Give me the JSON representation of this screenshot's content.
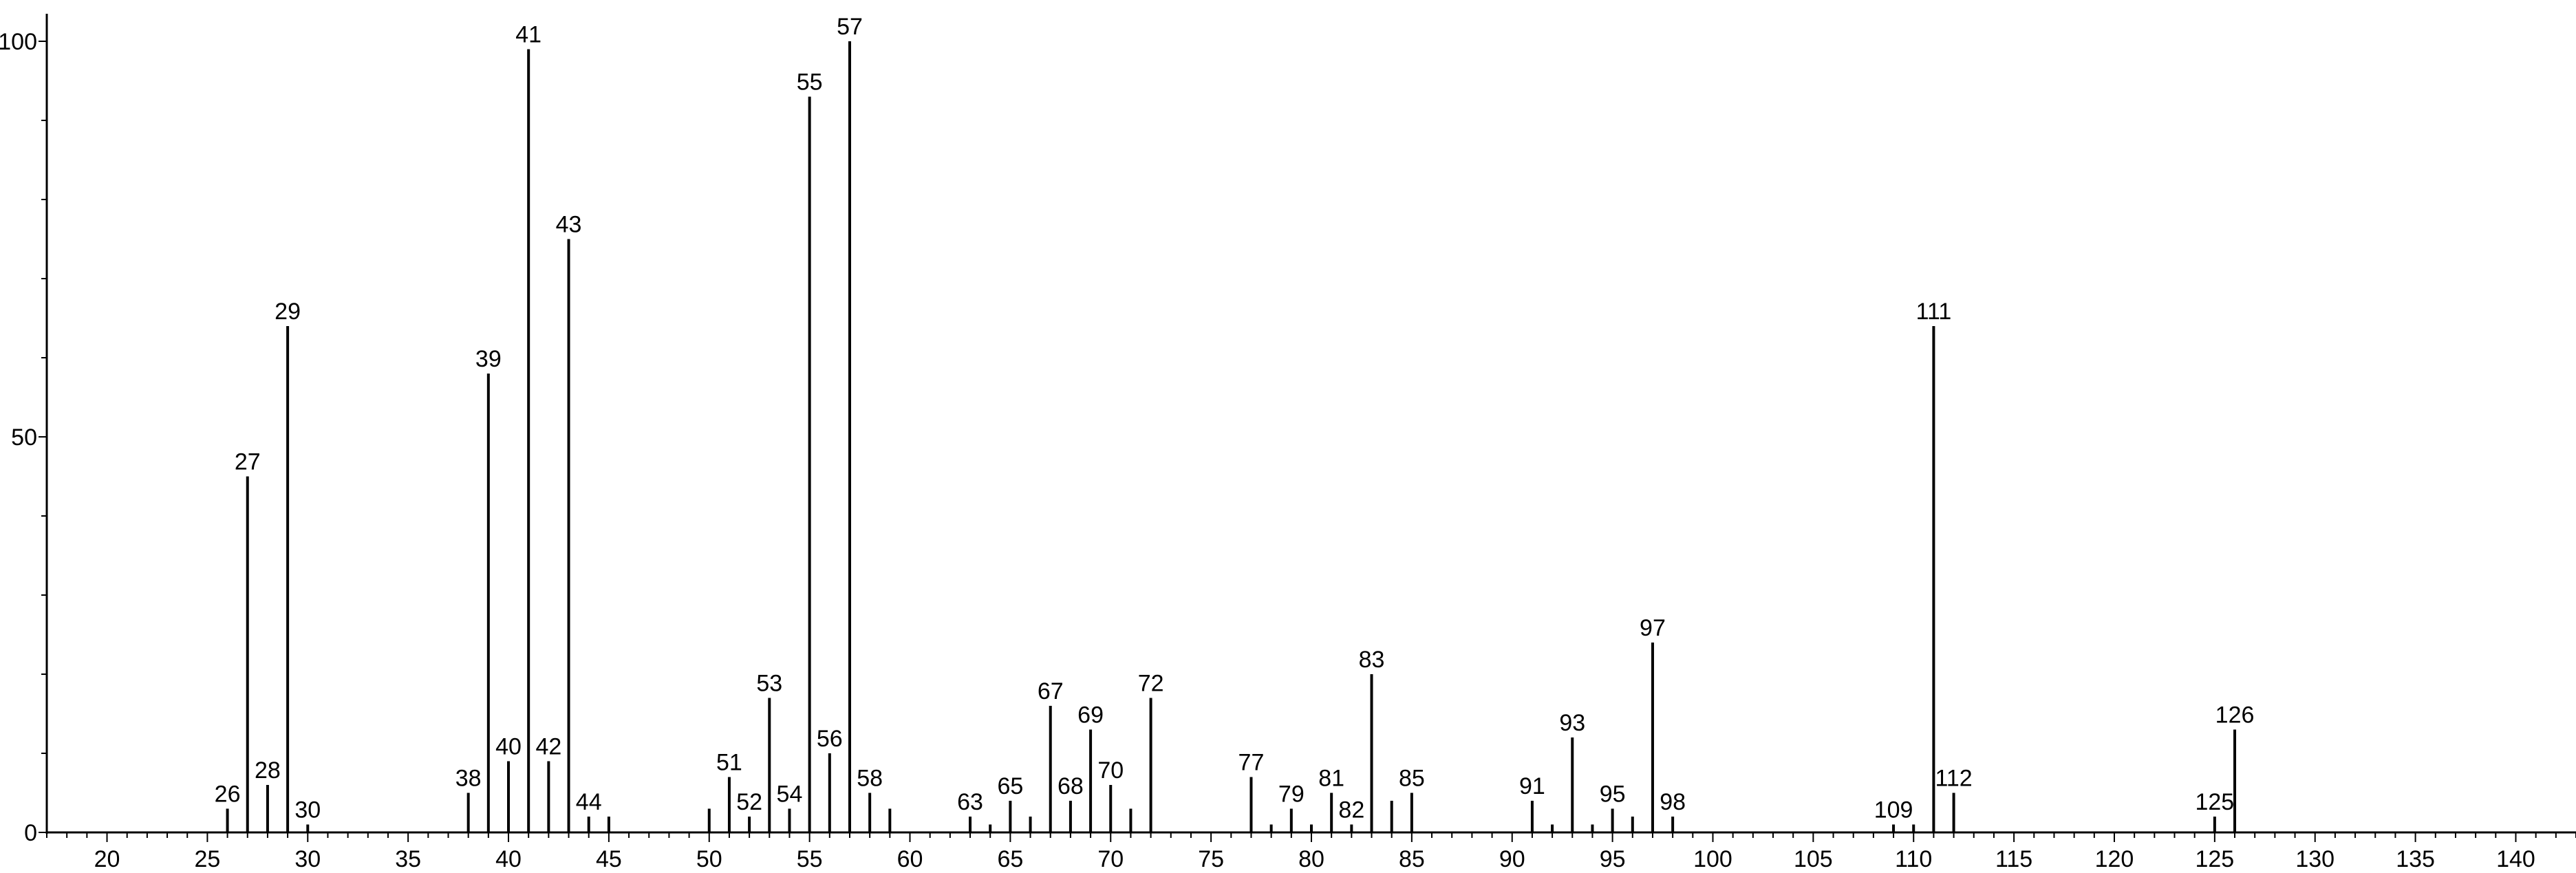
{
  "chart_data": {
    "type": "bar",
    "title": "",
    "xlabel": "",
    "ylabel": "",
    "xlim": [
      17,
      143
    ],
    "ylim": [
      0,
      100
    ],
    "x_ticks": [
      20,
      25,
      30,
      35,
      40,
      45,
      50,
      55,
      60,
      65,
      70,
      75,
      80,
      85,
      90,
      95,
      100,
      105,
      110,
      115,
      120,
      125,
      130,
      135,
      140
    ],
    "y_ticks": [
      0,
      50,
      100
    ],
    "grid": false,
    "legend": "none",
    "bar_color": "#000000",
    "peaks": [
      {
        "x": 26,
        "y": 3,
        "label": "26"
      },
      {
        "x": 27,
        "y": 45,
        "label": "27"
      },
      {
        "x": 28,
        "y": 6,
        "label": "28"
      },
      {
        "x": 29,
        "y": 64,
        "label": "29"
      },
      {
        "x": 30,
        "y": 1,
        "label": "30"
      },
      {
        "x": 38,
        "y": 5,
        "label": "38"
      },
      {
        "x": 39,
        "y": 58,
        "label": "39"
      },
      {
        "x": 40,
        "y": 9,
        "label": "40"
      },
      {
        "x": 41,
        "y": 99,
        "label": "41"
      },
      {
        "x": 42,
        "y": 9,
        "label": "42"
      },
      {
        "x": 43,
        "y": 75,
        "label": "43"
      },
      {
        "x": 44,
        "y": 2,
        "label": "44"
      },
      {
        "x": 45,
        "y": 2
      },
      {
        "x": 50,
        "y": 3
      },
      {
        "x": 51,
        "y": 7,
        "label": "51"
      },
      {
        "x": 52,
        "y": 2,
        "label": "52"
      },
      {
        "x": 53,
        "y": 17,
        "label": "53"
      },
      {
        "x": 54,
        "y": 3,
        "label": "54"
      },
      {
        "x": 55,
        "y": 93,
        "label": "55"
      },
      {
        "x": 56,
        "y": 10,
        "label": "56"
      },
      {
        "x": 57,
        "y": 100,
        "label": "57"
      },
      {
        "x": 58,
        "y": 5,
        "label": "58"
      },
      {
        "x": 59,
        "y": 3
      },
      {
        "x": 63,
        "y": 2,
        "label": "63"
      },
      {
        "x": 64,
        "y": 1
      },
      {
        "x": 65,
        "y": 4,
        "label": "65"
      },
      {
        "x": 66,
        "y": 2
      },
      {
        "x": 67,
        "y": 16,
        "label": "67"
      },
      {
        "x": 68,
        "y": 4,
        "label": "68"
      },
      {
        "x": 69,
        "y": 13,
        "label": "69"
      },
      {
        "x": 70,
        "y": 6,
        "label": "70"
      },
      {
        "x": 71,
        "y": 3
      },
      {
        "x": 72,
        "y": 17,
        "label": "72"
      },
      {
        "x": 77,
        "y": 7,
        "label": "77"
      },
      {
        "x": 78,
        "y": 1
      },
      {
        "x": 79,
        "y": 3,
        "label": "79"
      },
      {
        "x": 80,
        "y": 1
      },
      {
        "x": 81,
        "y": 5,
        "label": "81"
      },
      {
        "x": 82,
        "y": 1,
        "label": "82"
      },
      {
        "x": 83,
        "y": 20,
        "label": "83"
      },
      {
        "x": 84,
        "y": 4
      },
      {
        "x": 85,
        "y": 5,
        "label": "85"
      },
      {
        "x": 91,
        "y": 4,
        "label": "91"
      },
      {
        "x": 92,
        "y": 1
      },
      {
        "x": 93,
        "y": 12,
        "label": "93"
      },
      {
        "x": 94,
        "y": 1
      },
      {
        "x": 95,
        "y": 3,
        "label": "95"
      },
      {
        "x": 96,
        "y": 2
      },
      {
        "x": 97,
        "y": 24,
        "label": "97"
      },
      {
        "x": 98,
        "y": 2,
        "label": "98"
      },
      {
        "x": 109,
        "y": 1,
        "label": "109"
      },
      {
        "x": 110,
        "y": 1
      },
      {
        "x": 111,
        "y": 64,
        "label": "111"
      },
      {
        "x": 112,
        "y": 5,
        "label": "112"
      },
      {
        "x": 125,
        "y": 2,
        "label": "125"
      },
      {
        "x": 126,
        "y": 13,
        "label": "126"
      }
    ]
  }
}
